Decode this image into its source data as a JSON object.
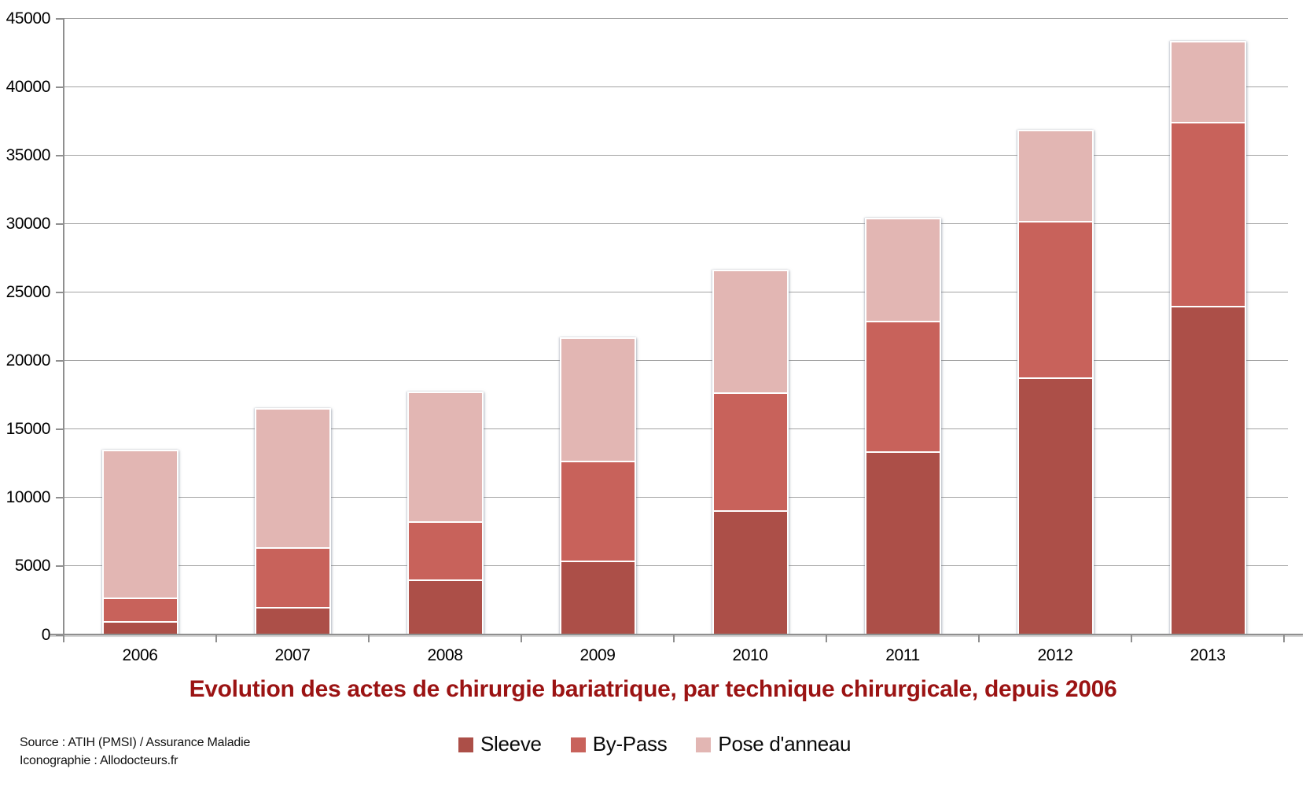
{
  "chart_data": {
    "type": "bar",
    "stacked": true,
    "title": "Evolution des actes de chirurgie bariatrique, par technique chirurgicale, depuis 2006",
    "title_color": "#9b1313",
    "categories": [
      "2006",
      "2007",
      "2008",
      "2009",
      "2010",
      "2011",
      "2012",
      "2013"
    ],
    "series": [
      {
        "name": "Sleeve",
        "color": "#ac4f48",
        "values": [
          1000,
          2000,
          4000,
          5400,
          9100,
          13400,
          18800,
          24000
        ]
      },
      {
        "name": "By-Pass",
        "color": "#c8625b",
        "values": [
          1750,
          4350,
          4250,
          7300,
          8600,
          9550,
          11450,
          13450
        ]
      },
      {
        "name": "Pose d'anneau",
        "color": "#e2b6b3",
        "values": [
          10800,
          10150,
          9500,
          9000,
          8950,
          7500,
          6650,
          5900
        ]
      }
    ],
    "totals": [
      13550,
      16500,
      17750,
      21700,
      26650,
      30450,
      36900,
      43350
    ],
    "ylim": [
      0,
      45000
    ],
    "ytick_step": 5000,
    "yticks": [
      "0",
      "5000",
      "10000",
      "15000",
      "20000",
      "25000",
      "30000",
      "35000",
      "40000",
      "45000"
    ],
    "xlabel": "",
    "ylabel": "",
    "grid": true,
    "legend_position": "bottom-center"
  },
  "footer": {
    "source_line1": "Source : ATIH (PMSI) / Assurance Maladie",
    "source_line2": "Iconographie : Allodocteurs.fr"
  }
}
